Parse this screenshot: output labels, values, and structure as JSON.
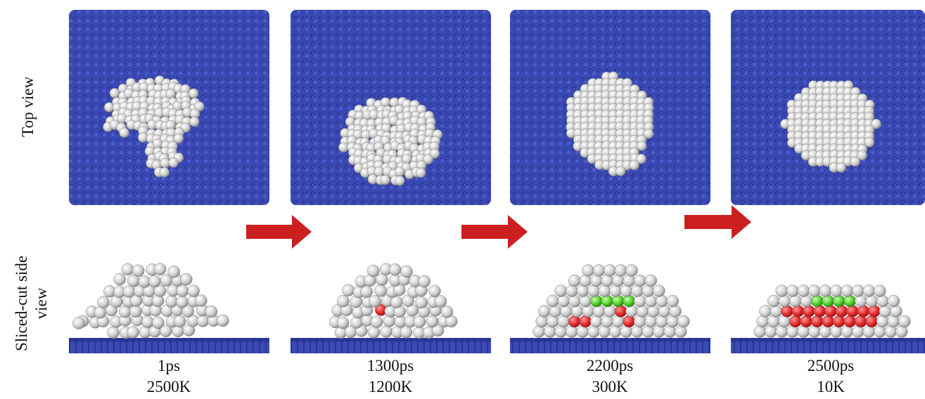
{
  "row_labels": {
    "top": "Top view",
    "side": [
      "Sliced-cut side",
      "view"
    ]
  },
  "panels": [
    {
      "time": "1ps",
      "temperature": "2500K"
    },
    {
      "time": "1300ps",
      "temperature": "1200K"
    },
    {
      "time": "2200ps",
      "temperature": "300K"
    },
    {
      "time": "2500ps",
      "temperature": "10K"
    }
  ]
}
